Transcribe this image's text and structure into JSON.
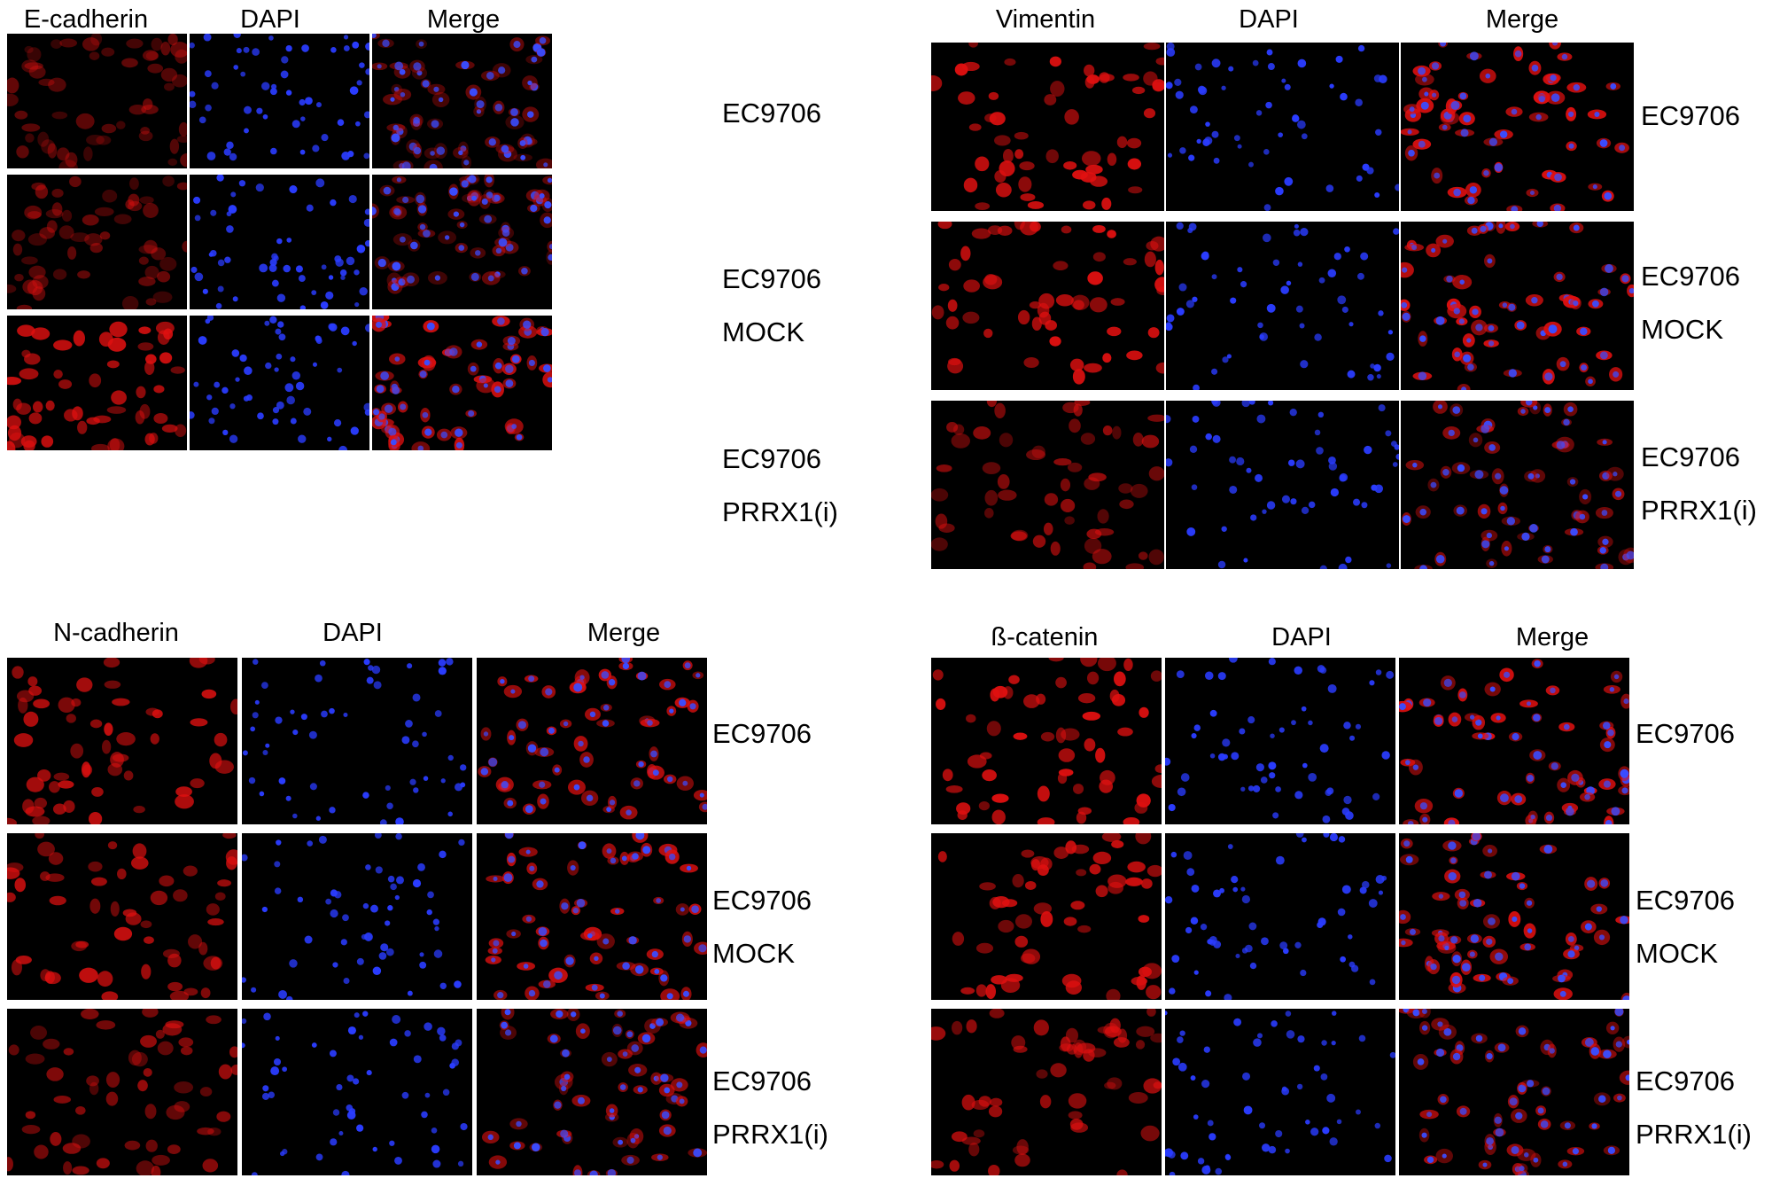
{
  "colors": {
    "red_stain": "#e01010",
    "blue_stain": "#2a3cff",
    "merge_red": "#e02020",
    "merge_blue": "#3a4cff",
    "background": "#000000"
  },
  "panels": [
    {
      "id": "e-cadherin",
      "headers": [
        "E-cadherin",
        "DAPI",
        "Merge"
      ],
      "rows": [
        {
          "lines": [
            "EC9706"
          ],
          "red_level": 0.25
        },
        {
          "lines": [
            "EC9706",
            "MOCK"
          ],
          "red_level": 0.3
        },
        {
          "lines": [
            "EC9706",
            "PRRX1(i)"
          ],
          "red_level": 0.85
        }
      ]
    },
    {
      "id": "vimentin",
      "headers": [
        "Vimentin",
        "DAPI",
        "Merge"
      ],
      "rows": [
        {
          "lines": [
            "EC9706"
          ],
          "red_level": 0.95
        },
        {
          "lines": [
            "EC9706",
            "MOCK"
          ],
          "red_level": 0.95
        },
        {
          "lines": [
            "EC9706",
            "PRRX1(i)"
          ],
          "red_level": 0.55
        }
      ]
    },
    {
      "id": "n-cadherin",
      "headers": [
        "N-cadherin",
        "DAPI",
        "Merge"
      ],
      "rows": [
        {
          "lines": [
            "EC9706"
          ],
          "red_level": 0.85
        },
        {
          "lines": [
            "EC9706",
            "MOCK"
          ],
          "red_level": 0.8
        },
        {
          "lines": [
            "EC9706",
            "PRRX1(i)"
          ],
          "red_level": 0.55
        }
      ]
    },
    {
      "id": "b-catenin",
      "headers": [
        "ß-catenin",
        "DAPI",
        "Merge"
      ],
      "rows": [
        {
          "lines": [
            "EC9706"
          ],
          "red_level": 0.95
        },
        {
          "lines": [
            "EC9706",
            "MOCK"
          ],
          "red_level": 0.9
        },
        {
          "lines": [
            "EC9706",
            "PRRX1(i)"
          ],
          "red_level": 0.65
        }
      ]
    }
  ]
}
